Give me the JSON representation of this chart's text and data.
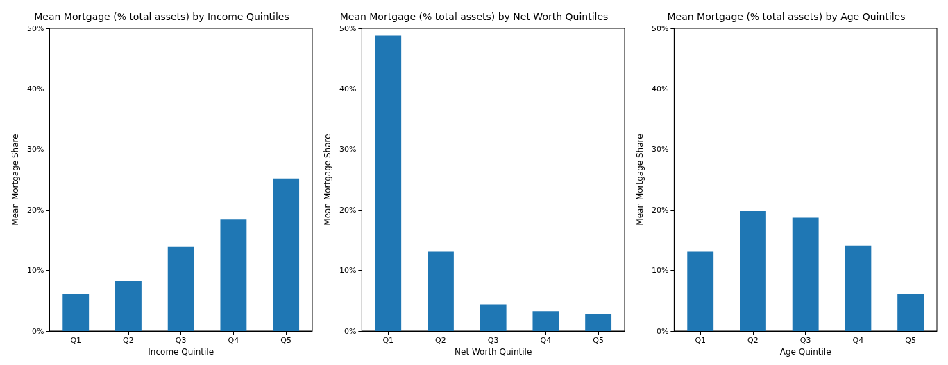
{
  "chart_data": [
    {
      "type": "bar",
      "title": "Mean Mortgage (% total assets) by Income Quintiles",
      "xlabel": "Income Quintile",
      "ylabel": "Mean Mortgage Share",
      "categories": [
        "Q1",
        "Q2",
        "Q3",
        "Q4",
        "Q5"
      ],
      "values": [
        6.1,
        8.3,
        14.0,
        18.5,
        25.2
      ],
      "color": "#1f77b4",
      "ylim": [
        0,
        50
      ],
      "yticks": [
        {
          "value": 0,
          "label": "0%"
        },
        {
          "value": 10,
          "label": "10%"
        },
        {
          "value": 20,
          "label": "20%"
        },
        {
          "value": 30,
          "label": "30%"
        },
        {
          "value": 40,
          "label": "40%"
        },
        {
          "value": 50,
          "label": "50%"
        }
      ],
      "grid": false
    },
    {
      "type": "bar",
      "title": "Mean Mortgage (% total assets) by Net Worth Quintiles",
      "xlabel": "Net Worth Quintile",
      "ylabel": "Mean Mortgage Share",
      "categories": [
        "Q1",
        "Q2",
        "Q3",
        "Q4",
        "Q5"
      ],
      "values": [
        48.8,
        13.1,
        4.4,
        3.3,
        2.8
      ],
      "color": "#1f77b4",
      "ylim": [
        0,
        50
      ],
      "yticks": [
        {
          "value": 0,
          "label": "0%"
        },
        {
          "value": 10,
          "label": "10%"
        },
        {
          "value": 20,
          "label": "20%"
        },
        {
          "value": 30,
          "label": "30%"
        },
        {
          "value": 40,
          "label": "40%"
        },
        {
          "value": 50,
          "label": "50%"
        }
      ],
      "grid": false
    },
    {
      "type": "bar",
      "title": "Mean Mortgage (% total assets) by Age Quintiles",
      "xlabel": "Age Quintile",
      "ylabel": "Mean Mortgage Share",
      "categories": [
        "Q1",
        "Q2",
        "Q3",
        "Q4",
        "Q5"
      ],
      "values": [
        13.1,
        19.9,
        18.7,
        14.1,
        6.1
      ],
      "color": "#1f77b4",
      "ylim": [
        0,
        50
      ],
      "yticks": [
        {
          "value": 0,
          "label": "0%"
        },
        {
          "value": 10,
          "label": "10%"
        },
        {
          "value": 20,
          "label": "20%"
        },
        {
          "value": 30,
          "label": "30%"
        },
        {
          "value": 40,
          "label": "40%"
        },
        {
          "value": 50,
          "label": "50%"
        }
      ],
      "grid": false
    }
  ]
}
